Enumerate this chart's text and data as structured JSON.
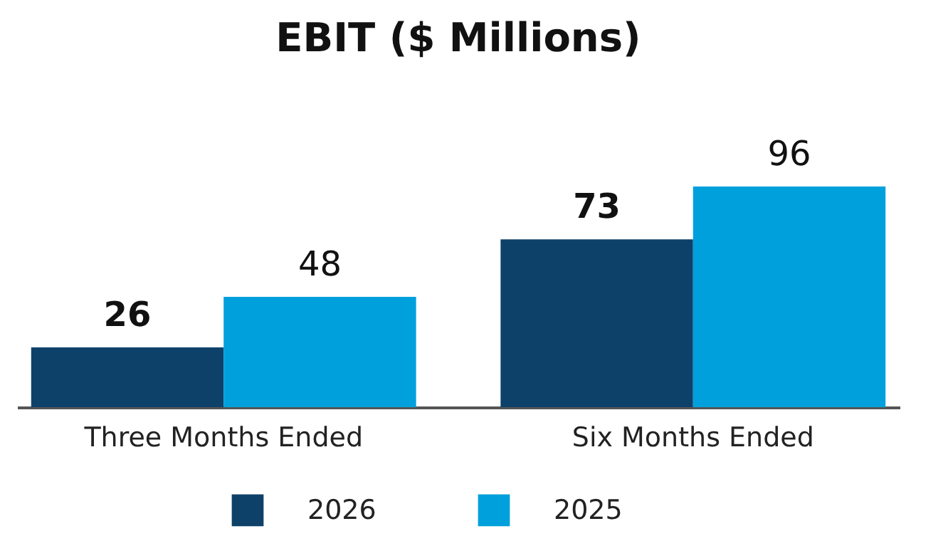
{
  "chart_data": {
    "type": "bar",
    "title": "EBIT ($ Millions)",
    "categories": [
      "Three Months Ended",
      "Six Months Ended"
    ],
    "series": [
      {
        "name": "2026",
        "color": "#0e4169",
        "values": [
          26,
          73
        ]
      },
      {
        "name": "2025",
        "color": "#00a0dc",
        "values": [
          48,
          96
        ]
      }
    ],
    "data_labels": true,
    "legend": "bottom"
  }
}
